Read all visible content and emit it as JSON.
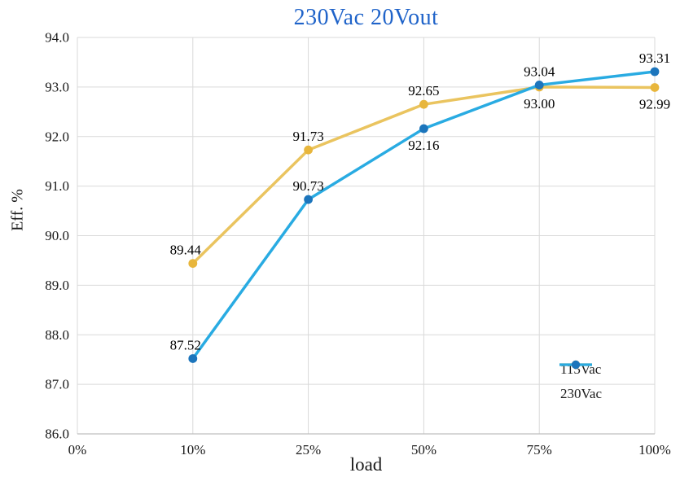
{
  "chart_data": {
    "type": "line",
    "title": "230Vac 20Vout",
    "xlabel": "load",
    "ylabel": "Eff. %",
    "categories": [
      "0%",
      "10%",
      "25%",
      "50%",
      "75%",
      "100%"
    ],
    "y_ticks": [
      "86.0",
      "87.0",
      "88.0",
      "89.0",
      "90.0",
      "91.0",
      "92.0",
      "93.0",
      "94.0"
    ],
    "ylim": [
      86.0,
      94.0
    ],
    "y_step": 1.0,
    "grid": true,
    "legend_position": "bottom-right",
    "series": [
      {
        "name": "115Vac",
        "line_color": "#EAC45F",
        "marker_color": "#E8B63C",
        "values": [
          null,
          89.44,
          91.73,
          92.65,
          93.0,
          92.99
        ],
        "labels": [
          "",
          "89.44",
          "91.73",
          "92.65",
          "93.00",
          "92.99"
        ],
        "label_pos": [
          "",
          "above",
          "above",
          "above",
          "below",
          "below"
        ]
      },
      {
        "name": "230Vac",
        "line_color": "#29ABE2",
        "marker_color": "#1C75BC",
        "values": [
          null,
          87.52,
          90.73,
          92.16,
          93.04,
          93.31
        ],
        "labels": [
          "",
          "87.52",
          "90.73",
          "92.16",
          "93.04",
          "93.31"
        ],
        "label_pos": [
          "",
          "above",
          "above",
          "below",
          "above",
          "above"
        ]
      }
    ],
    "title_color": "#1F63C9",
    "grid_color": "#D9D9D9",
    "axis_line_color": "#BFBFBF",
    "text_color": "#1A1A1A"
  }
}
